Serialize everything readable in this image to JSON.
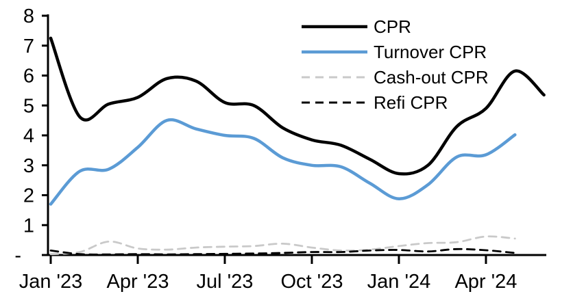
{
  "page": {
    "background_color": "#ffffff",
    "text_color": "#000000"
  },
  "chart_data": {
    "type": "line",
    "title": "",
    "xlabel": "",
    "ylabel": "",
    "grid": false,
    "legend_position": "top-right",
    "ylim": [
      0,
      8
    ],
    "y_tick_values": [
      0,
      1,
      2,
      3,
      4,
      5,
      6,
      7,
      8
    ],
    "y_tick_labels": [
      "-",
      "1",
      "2",
      "3",
      "4",
      "5",
      "6",
      "7",
      "8"
    ],
    "x_tick_labels": [
      "Jan '23",
      "Apr '23",
      "Jul '23",
      "Oct '23",
      "Jan '24",
      "Apr '24"
    ],
    "x_tick_month_index": [
      0,
      3,
      6,
      9,
      12,
      15
    ],
    "x_categories": [
      "Jan '23",
      "Feb '23",
      "Mar '23",
      "Apr '23",
      "May '23",
      "Jun '23",
      "Jul '23",
      "Aug '23",
      "Sep '23",
      "Oct '23",
      "Nov '23",
      "Dec '23",
      "Jan '24",
      "Feb '24",
      "Mar '24",
      "Apr '24",
      "May '24",
      "Jun '24"
    ],
    "series": [
      {
        "name": "CPR",
        "color": "#000000",
        "line_style": "solid",
        "line_width": 4.5,
        "values": [
          7.25,
          4.62,
          5.05,
          5.27,
          5.9,
          5.82,
          5.1,
          5.0,
          4.25,
          3.85,
          3.67,
          3.2,
          2.72,
          3.0,
          4.3,
          4.9,
          6.15,
          5.35
        ]
      },
      {
        "name": "Turnover CPR",
        "color": "#5B9BD5",
        "line_style": "solid",
        "line_width": 4.5,
        "values": [
          1.7,
          2.8,
          2.87,
          3.6,
          4.5,
          4.22,
          4.0,
          3.9,
          3.25,
          3.0,
          2.95,
          2.4,
          1.88,
          2.35,
          3.28,
          3.35,
          4.02
        ]
      },
      {
        "name": "Cash-out CPR",
        "color": "#C9C9C9",
        "line_style": "dashed",
        "line_width": 2.8,
        "values": [
          0.03,
          0.1,
          0.45,
          0.22,
          0.18,
          0.25,
          0.28,
          0.3,
          0.38,
          0.25,
          0.15,
          0.18,
          0.3,
          0.4,
          0.43,
          0.62,
          0.55
        ]
      },
      {
        "name": "Refi CPR",
        "color": "#000000",
        "line_style": "dashed",
        "line_width": 2.8,
        "values": [
          0.15,
          0.03,
          0.02,
          0.03,
          0.02,
          0.03,
          0.04,
          0.05,
          0.07,
          0.1,
          0.1,
          0.15,
          0.17,
          0.12,
          0.2,
          0.16,
          0.07
        ]
      }
    ]
  }
}
